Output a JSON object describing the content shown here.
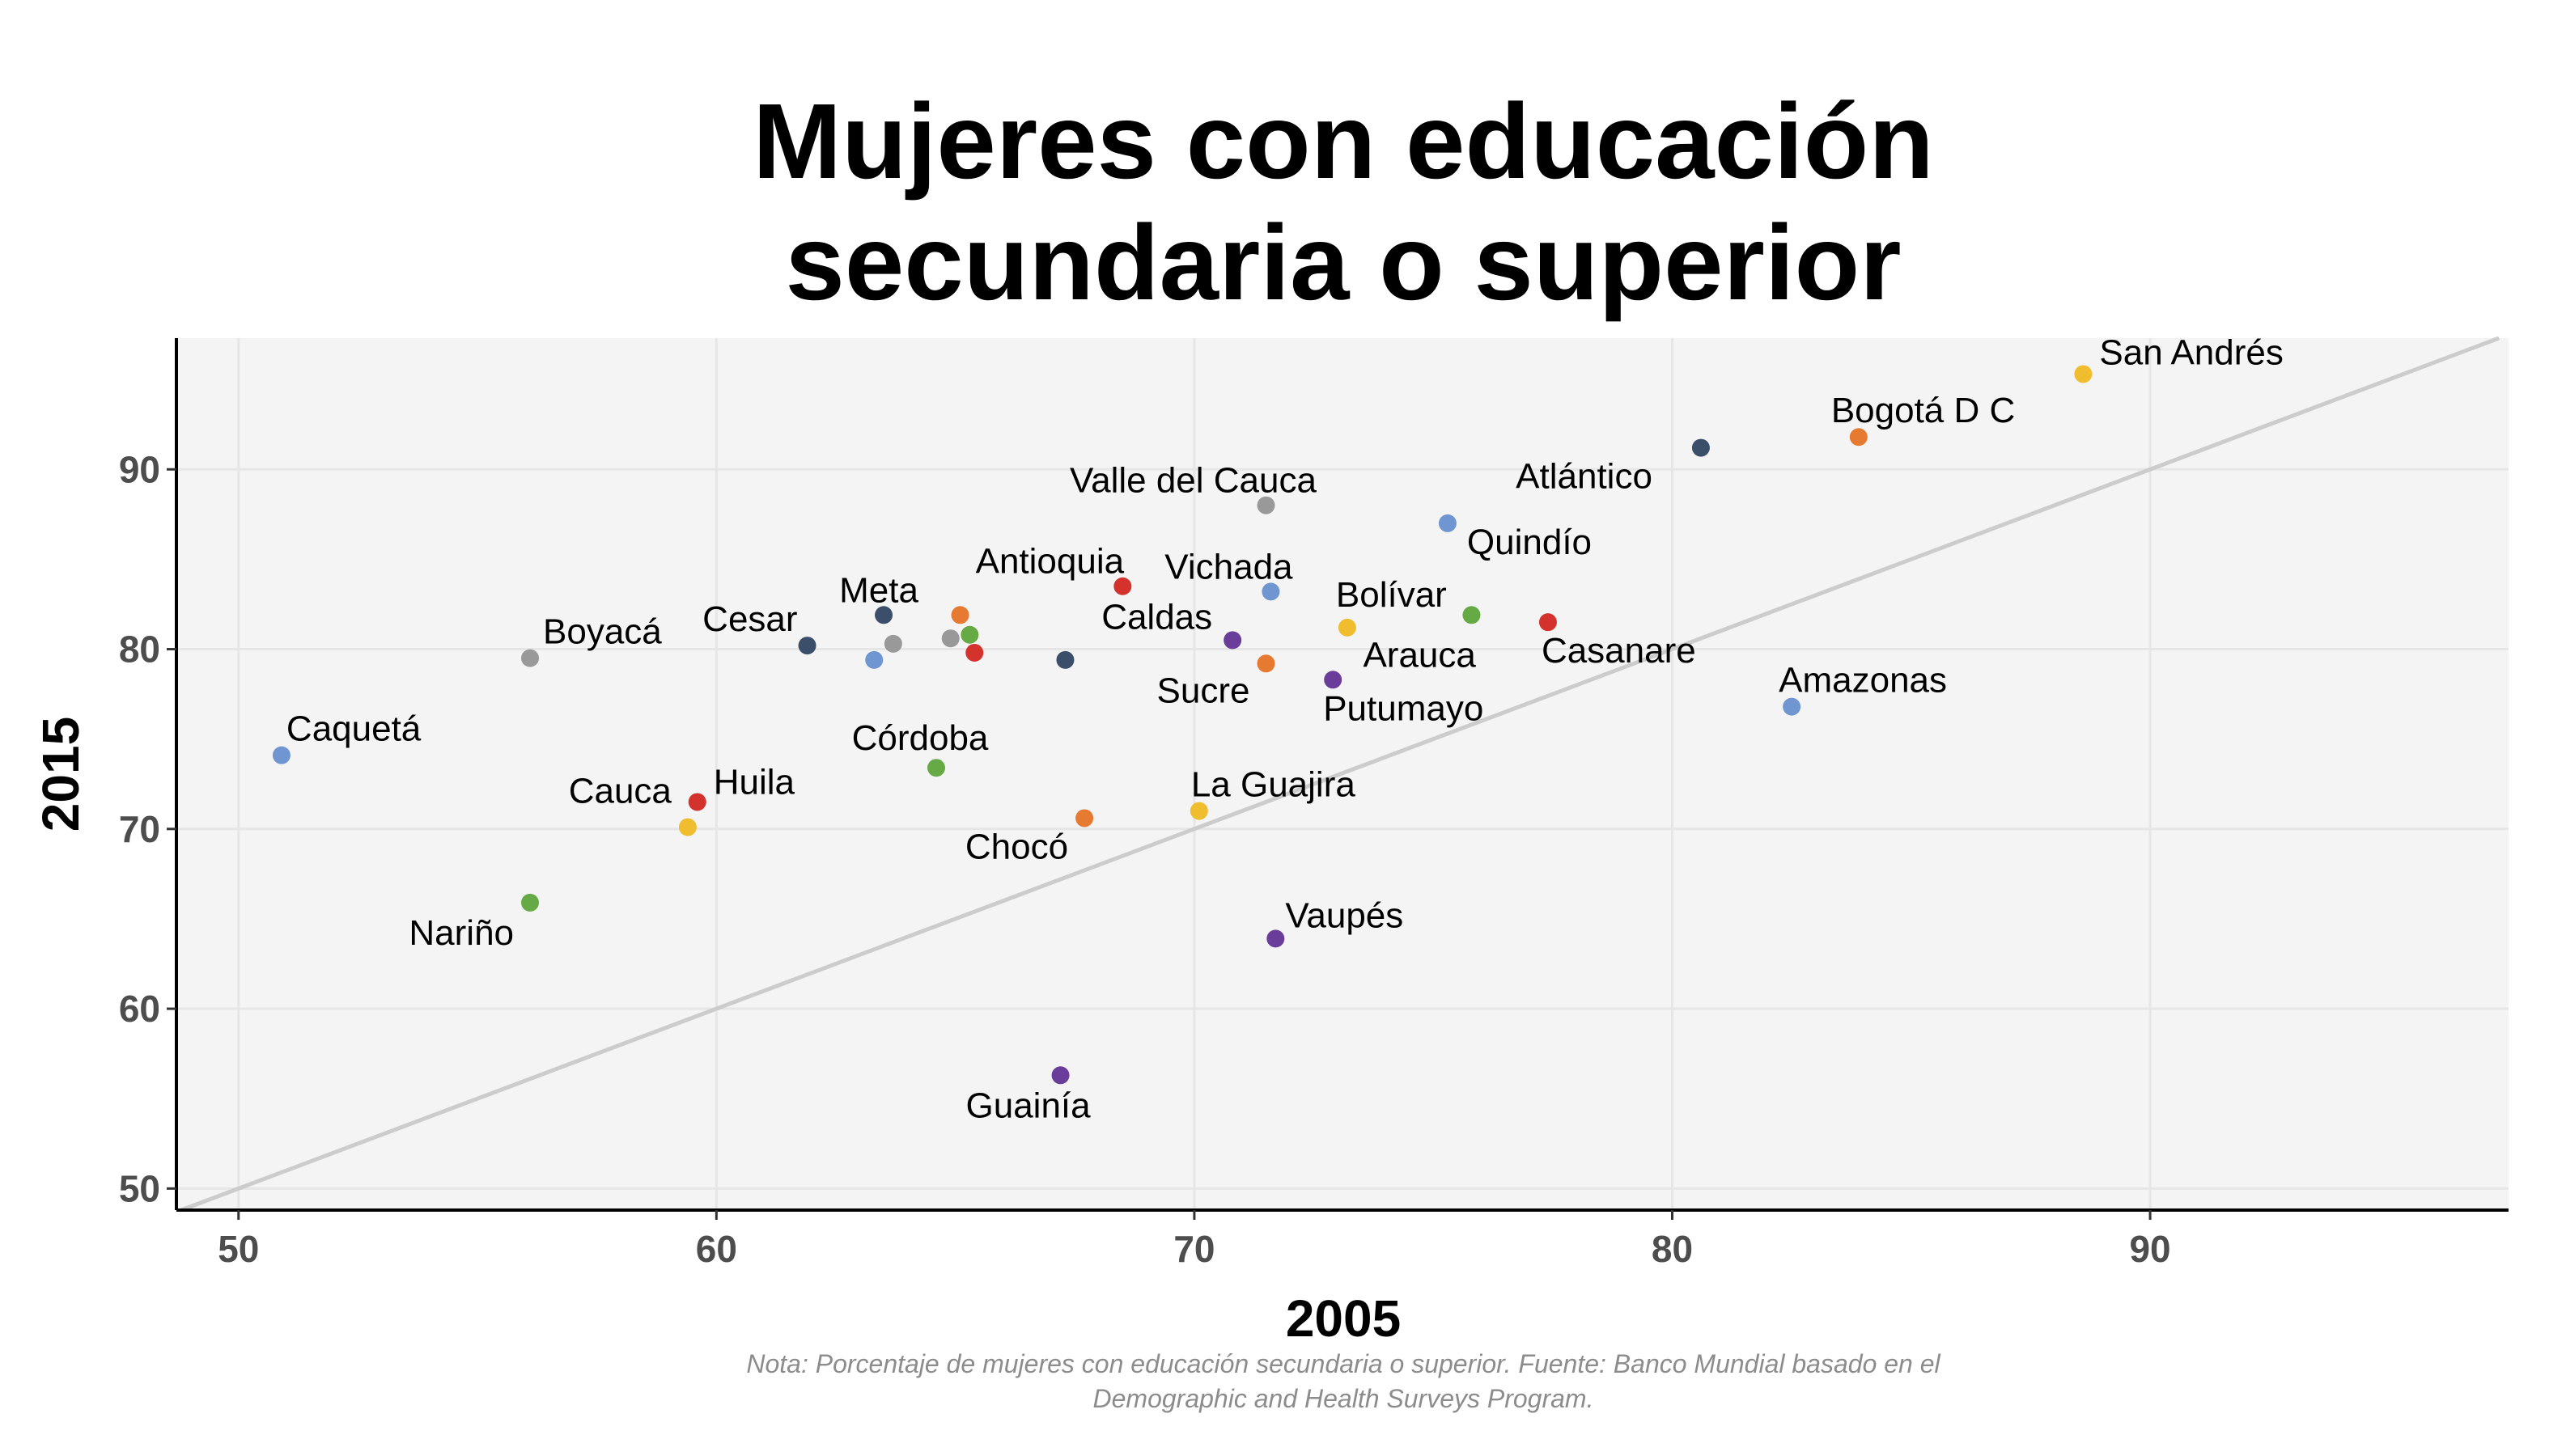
{
  "chart_data": {
    "type": "scatter",
    "title_lines": [
      "Mujeres con educación",
      "secundaria o superior"
    ],
    "xlabel": "2005",
    "ylabel": "2015",
    "xlim": [
      48.7,
      97.5
    ],
    "ylim": [
      48.8,
      97.3
    ],
    "xticks": [
      50,
      60,
      70,
      80,
      90
    ],
    "yticks": [
      50,
      60,
      70,
      80,
      90
    ],
    "grid": true,
    "reference_line": "y = x",
    "note_lines": [
      "Nota: Porcentaje de mujeres con educación secundaria o superior. Fuente: Banco Mundial basado en el",
      "Demographic and Health Surveys Program."
    ],
    "colors": {
      "panel_background": "#f4f4f4",
      "grid": "#e6e6e6",
      "reference_line": "#cccccc",
      "palette": [
        "#6f96d0",
        "#999999",
        "#3b4f6b",
        "#d3332c",
        "#66aa45",
        "#e57a30",
        "#f0bd2e",
        "#6a3d9a"
      ]
    },
    "points": [
      {
        "label": "Caquetá",
        "x": 50.9,
        "y": 74.1,
        "color": "#6f96d0"
      },
      {
        "label": "Boyacá",
        "x": 56.1,
        "y": 79.5,
        "color": "#999999"
      },
      {
        "label": "Nariño",
        "x": 56.1,
        "y": 65.9,
        "color": "#66aa45"
      },
      {
        "label": "Cauca",
        "x": 59.4,
        "y": 70.1,
        "color": "#f0bd2e"
      },
      {
        "label": "Huila",
        "x": 59.6,
        "y": 71.5,
        "color": "#d3332c"
      },
      {
        "label": "Cesar",
        "x": 61.9,
        "y": 80.2,
        "color": "#3b4f6b"
      },
      {
        "label": "",
        "x": 63.3,
        "y": 79.4,
        "color": "#6f96d0"
      },
      {
        "label": "Meta",
        "x": 63.5,
        "y": 81.9,
        "color": "#3b4f6b"
      },
      {
        "label": "",
        "x": 63.7,
        "y": 80.3,
        "color": "#999999"
      },
      {
        "label": "Córdoba",
        "x": 64.6,
        "y": 73.4,
        "color": "#66aa45"
      },
      {
        "label": "",
        "x": 64.9,
        "y": 80.6,
        "color": "#999999"
      },
      {
        "label": "",
        "x": 65.1,
        "y": 81.9,
        "color": "#e57a30"
      },
      {
        "label": "",
        "x": 65.3,
        "y": 80.8,
        "color": "#66aa45"
      },
      {
        "label": "",
        "x": 65.4,
        "y": 79.8,
        "color": "#d3332c"
      },
      {
        "label": "Guainía",
        "x": 67.2,
        "y": 56.3,
        "color": "#6a3d9a"
      },
      {
        "label": "",
        "x": 67.3,
        "y": 79.4,
        "color": "#3b4f6b"
      },
      {
        "label": "Chocó",
        "x": 67.7,
        "y": 70.6,
        "color": "#e57a30"
      },
      {
        "label": "Antioquia",
        "x": 68.5,
        "y": 83.5,
        "color": "#d3332c"
      },
      {
        "label": "La Guajira",
        "x": 70.1,
        "y": 71.0,
        "color": "#f0bd2e"
      },
      {
        "label": "Caldas",
        "x": 70.8,
        "y": 80.5,
        "color": "#6a3d9a"
      },
      {
        "label": "Valle del Cauca",
        "x": 71.5,
        "y": 88.0,
        "color": "#999999"
      },
      {
        "label": "Sucre",
        "x": 71.5,
        "y": 79.2,
        "color": "#e57a30"
      },
      {
        "label": "Vichada",
        "x": 71.6,
        "y": 83.2,
        "color": "#6f96d0"
      },
      {
        "label": "Vaupés",
        "x": 71.7,
        "y": 63.9,
        "color": "#6a3d9a"
      },
      {
        "label": "Putumayo",
        "x": 72.9,
        "y": 78.3,
        "color": "#6a3d9a"
      },
      {
        "label": "Bolívar",
        "x": 73.2,
        "y": 81.2,
        "color": "#f0bd2e"
      },
      {
        "label": "Quindío",
        "x": 75.3,
        "y": 87.0,
        "color": "#6f96d0"
      },
      {
        "label": "Arauca",
        "x": 75.8,
        "y": 81.9,
        "color": "#66aa45"
      },
      {
        "label": "Casanare",
        "x": 77.4,
        "y": 81.5,
        "color": "#d3332c"
      },
      {
        "label": "Atlántico",
        "x": 80.6,
        "y": 91.2,
        "color": "#3b4f6b"
      },
      {
        "label": "Amazonas",
        "x": 82.5,
        "y": 76.8,
        "color": "#6f96d0"
      },
      {
        "label": "Bogotá D C",
        "x": 83.9,
        "y": 91.8,
        "color": "#e57a30"
      },
      {
        "label": "San Andrés",
        "x": 88.6,
        "y": 95.3,
        "color": "#f0bd2e"
      }
    ]
  }
}
